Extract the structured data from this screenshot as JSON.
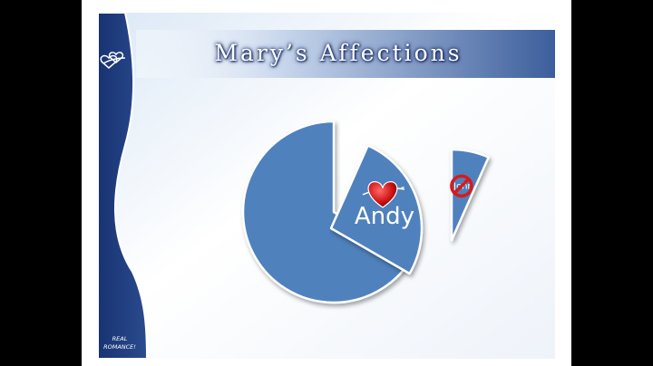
{
  "slide": {
    "title": "Mary’s Affections",
    "badge_line1": "REAL",
    "badge_line2": "ROMANCE!"
  },
  "chart_data": {
    "type": "pie",
    "exploded": true,
    "slices": [
      {
        "label": "",
        "value": 10,
        "color": "#4f81bd",
        "marker": ""
      },
      {
        "label": "Andy",
        "value": 4,
        "color": "#4f81bd",
        "marker": "heart-icon"
      },
      {
        "label": "John",
        "value": 1,
        "color": "#4f81bd",
        "marker": "no-symbol-icon"
      }
    ],
    "legend": "none",
    "grid": false
  },
  "colors": {
    "sidebar": "#1f3c7e",
    "title_bar": "#4f6fa8",
    "slice": "#4f81bd"
  }
}
